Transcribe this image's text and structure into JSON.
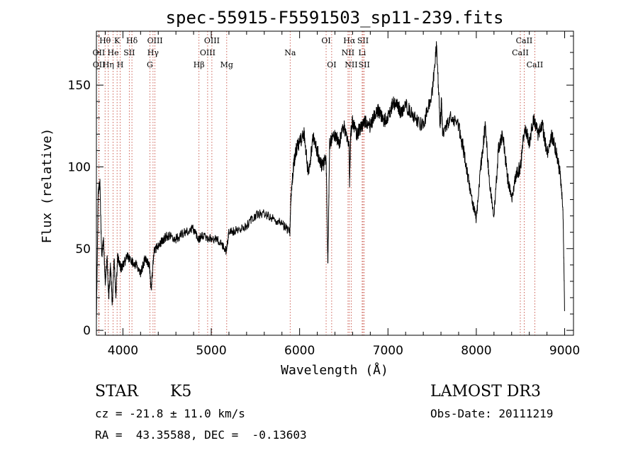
{
  "chart_data": {
    "type": "line",
    "title": "spec-55915-F5591503_sp11-239.fits",
    "xlabel": "Wavelength (Å)",
    "ylabel": "Flux (relative)",
    "xlim": [
      3700,
      9100
    ],
    "ylim": [
      -3,
      183
    ],
    "xticks": [
      4000,
      5000,
      6000,
      7000,
      8000,
      9000
    ],
    "yticks": [
      0,
      50,
      100,
      150
    ],
    "series": [
      {
        "name": "flux",
        "color": "#000000",
        "x": [
          3700,
          3720,
          3740,
          3760,
          3780,
          3800,
          3820,
          3840,
          3860,
          3880,
          3900,
          3920,
          3940,
          3960,
          3980,
          4000,
          4050,
          4100,
          4150,
          4200,
          4250,
          4300,
          4320,
          4350,
          4400,
          4450,
          4500,
          4600,
          4700,
          4800,
          4860,
          4900,
          5000,
          5100,
          5170,
          5200,
          5300,
          5400,
          5500,
          5600,
          5700,
          5800,
          5890,
          5900,
          5930,
          5960,
          6000,
          6050,
          6100,
          6150,
          6200,
          6250,
          6300,
          6320,
          6340,
          6400,
          6450,
          6500,
          6560,
          6565,
          6580,
          6600,
          6650,
          6700,
          6750,
          6800,
          6850,
          6900,
          6950,
          7000,
          7050,
          7100,
          7150,
          7200,
          7300,
          7400,
          7500,
          7550,
          7590,
          7605,
          7620,
          7700,
          7800,
          7850,
          7900,
          7950,
          8000,
          8050,
          8100,
          8150,
          8200,
          8250,
          8300,
          8350,
          8400,
          8450,
          8500,
          8550,
          8600,
          8650,
          8700,
          8750,
          8800,
          8850,
          8900,
          8950,
          8980,
          9000
        ],
        "y": [
          5,
          85,
          90,
          45,
          55,
          30,
          45,
          20,
          40,
          15,
          45,
          20,
          45,
          40,
          38,
          40,
          45,
          42,
          40,
          35,
          44,
          40,
          25,
          48,
          52,
          55,
          58,
          56,
          60,
          62,
          56,
          58,
          56,
          55,
          48,
          60,
          62,
          64,
          70,
          72,
          68,
          65,
          60,
          80,
          100,
          110,
          115,
          120,
          95,
          118,
          110,
          100,
          105,
          40,
          115,
          120,
          115,
          125,
          115,
          90,
          122,
          128,
          120,
          125,
          128,
          125,
          132,
          135,
          128,
          130,
          138,
          140,
          132,
          138,
          130,
          125,
          145,
          175,
          125,
          140,
          120,
          130,
          125,
          112,
          95,
          80,
          68,
          100,
          125,
          90,
          70,
          110,
          120,
          95,
          80,
          95,
          100,
          125,
          115,
          130,
          120,
          125,
          108,
          120,
          110,
          95,
          75,
          12
        ]
      }
    ],
    "emission_lines": [
      {
        "label": "Hθ",
        "wavelength": 3798,
        "row": 1
      },
      {
        "label": "OII",
        "wavelength": 3727,
        "row": 2
      },
      {
        "label": "OII",
        "wavelength": 3729,
        "row": 3
      },
      {
        "label": "He",
        "wavelength": 3889,
        "row": 2
      },
      {
        "label": "Hη",
        "wavelength": 3835,
        "row": 3
      },
      {
        "label": "K",
        "wavelength": 3934,
        "row": 1
      },
      {
        "label": "SII",
        "wavelength": 4072,
        "row": 2
      },
      {
        "label": "H",
        "wavelength": 3969,
        "row": 3
      },
      {
        "label": "Hδ",
        "wavelength": 4102,
        "row": 1
      },
      {
        "label": "OIII",
        "wavelength": 4363,
        "row": 1
      },
      {
        "label": "Hγ",
        "wavelength": 4341,
        "row": 2
      },
      {
        "label": "G",
        "wavelength": 4305,
        "row": 3
      },
      {
        "label": "OIII",
        "wavelength": 5007,
        "row": 1
      },
      {
        "label": "OIII",
        "wavelength": 4959,
        "row": 2
      },
      {
        "label": "Hβ",
        "wavelength": 4861,
        "row": 3
      },
      {
        "label": "Mg",
        "wavelength": 5175,
        "row": 3
      },
      {
        "label": "Na",
        "wavelength": 5893,
        "row": 2
      },
      {
        "label": "OI",
        "wavelength": 6300,
        "row": 1
      },
      {
        "label": "OI",
        "wavelength": 6363,
        "row": 3
      },
      {
        "label": "Hα",
        "wavelength": 6563,
        "row": 1
      },
      {
        "label": "NII",
        "wavelength": 6548,
        "row": 2
      },
      {
        "label": "NII",
        "wavelength": 6584,
        "row": 3
      },
      {
        "label": "SII",
        "wavelength": 6717,
        "row": 1
      },
      {
        "label": "Li",
        "wavelength": 6708,
        "row": 2
      },
      {
        "label": "SII",
        "wavelength": 6731,
        "row": 3
      },
      {
        "label": "CaII",
        "wavelength": 8542,
        "row": 1
      },
      {
        "label": "CaII",
        "wavelength": 8498,
        "row": 2
      },
      {
        "label": "CaII",
        "wavelength": 8662,
        "row": 3
      }
    ]
  },
  "info": {
    "object_class": "STAR",
    "subclass": "K5",
    "survey": "LAMOST DR3",
    "cz": "cz = -21.8 ± 11.0 km/s",
    "obs_date": "Obs-Date: 20111219",
    "coords": "RA =  43.35588, DEC =  -0.13603"
  }
}
